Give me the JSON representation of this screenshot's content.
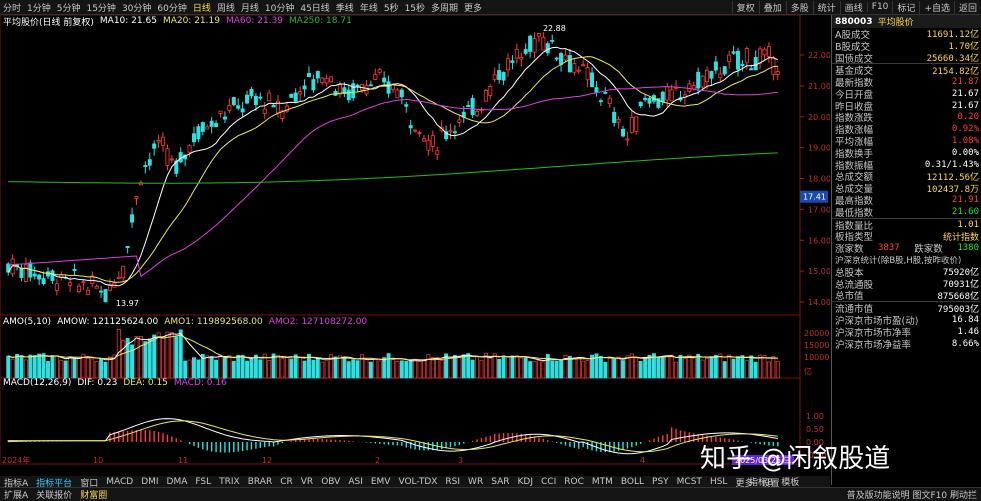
{
  "toolbar": {
    "periods": [
      "分时",
      "1分钟",
      "5分钟",
      "15分钟",
      "30分钟",
      "60分钟",
      "日线",
      "周线",
      "月线",
      "10分钟",
      "45日线",
      "季线",
      "年线",
      "5秒",
      "15秒",
      "多周期",
      "更多"
    ],
    "active_index": 6,
    "right_buttons": [
      "复权",
      "叠加",
      "多股",
      "统计",
      "画线",
      "F10",
      "标记",
      "+自选",
      "返回"
    ]
  },
  "main_title": {
    "name": "平均股价(日线 前复权)",
    "ma10": "MA10: 21.65",
    "ma20": "MA20: 21.19",
    "ma60": "MA60: 21.39",
    "ma250": "MA250: 18.71"
  },
  "amo_title": {
    "name": "AMO(5,10)",
    "amow": "AMOW: 121125624.00",
    "amo1": "AMO1: 119892568.00",
    "amo2": "AMO2: 127108272.00"
  },
  "macd_title": {
    "name": "MACD(12,26,9)",
    "dif": "DIF: 0.23",
    "dea": "DEA: 0.15",
    "macd": "MACD: 0.16"
  },
  "annotations": {
    "high": "22.88",
    "low": "13.97",
    "current": "17.41"
  },
  "price_axis": [
    "22.00",
    "21.00",
    "20.00",
    "19.00",
    "18.00",
    "17.00",
    "16.00",
    "15.00",
    "14.00"
  ],
  "amo_axis": [
    "20000",
    "15000",
    "10000",
    "亿"
  ],
  "macd_axis": [
    "1.00",
    "0.50",
    "0.00",
    "-0.50"
  ],
  "time_axis": [
    "2024年",
    "10",
    "11",
    "12",
    "2",
    "3",
    "4",
    "2025/03/25/三"
  ],
  "colors": {
    "up": "#ff3b3b",
    "down": "#30e0e0",
    "ma10": "#ffffff",
    "ma20": "#e8e860",
    "ma60": "#e040e0",
    "ma250": "#20c020"
  },
  "panel": {
    "code": "880003",
    "name": "平均股价",
    "rows": [
      {
        "label": "A股成交",
        "value": "11691.12亿",
        "color": "#ffd84d"
      },
      {
        "label": "B股成交",
        "value": "1.70亿",
        "color": "#ffd84d"
      },
      {
        "label": "国债成交",
        "value": "25660.34亿",
        "color": "#ffd84d"
      },
      {
        "label": "基金成交",
        "value": "2154.82亿",
        "color": "#ffd84d",
        "sep": true
      },
      {
        "label": "最新指数",
        "value": "21.87",
        "color": "#ff4040"
      },
      {
        "label": "今日开盘",
        "value": "21.67",
        "color": "#ffffff"
      },
      {
        "label": "昨日收盘",
        "value": "21.67",
        "color": "#ffffff"
      },
      {
        "label": "指数涨跌",
        "value": "0.20",
        "color": "#ff4040"
      },
      {
        "label": "指数涨幅",
        "value": "0.92%",
        "color": "#ff4040"
      },
      {
        "label": "平均涨幅",
        "value": "1.08%",
        "color": "#ff4040"
      },
      {
        "label": "指数换手",
        "value": "0.00%",
        "color": "#ffffff"
      },
      {
        "label": "指数振幅",
        "value": "0.31/1.43%",
        "color": "#ffffff"
      },
      {
        "label": "总成交额",
        "value": "12112.56亿",
        "color": "#ffd84d"
      },
      {
        "label": "总成交量",
        "value": "102437.8万",
        "color": "#ffd84d"
      },
      {
        "label": "最高指数",
        "value": "21.91",
        "color": "#ff4040"
      },
      {
        "label": "最低指数",
        "value": "21.60",
        "color": "#30e030"
      },
      {
        "label": "指数量比",
        "value": "1.01",
        "color": "#ffd84d",
        "sep": true
      },
      {
        "label": "板指类型",
        "value": "统计指数",
        "color": "#ffd84d"
      },
      {
        "label": "涨家数",
        "value": "3837",
        "value2": "跌家数",
        "value3": "1380",
        "color": "#ff4040",
        "special": true
      },
      {
        "label": "沪深京统计(除B股,H股,按昨收价)",
        "value": "",
        "color": "#ffffff",
        "wide": true
      },
      {
        "label": "总股本",
        "value": "75920亿",
        "color": "#ffffff"
      },
      {
        "label": "总流通股",
        "value": "70931亿",
        "color": "#ffffff"
      },
      {
        "label": "总市值",
        "value": "875668亿",
        "color": "#ffffff"
      },
      {
        "label": "流通市值",
        "value": "795003亿",
        "color": "#ffffff",
        "sep": true
      },
      {
        "label": "沪深京市场市盈(动)",
        "value": "16.84",
        "color": "#ffffff"
      },
      {
        "label": "沪深京市场市净率",
        "value": "1.46",
        "color": "#ffffff"
      },
      {
        "label": "沪深京市场净益率",
        "value": "8.66%",
        "color": "#ffffff"
      }
    ]
  },
  "indicator_tabs": [
    "指标A",
    "指标平台",
    "窗口",
    "MACD",
    "DMI",
    "DMA",
    "FSL",
    "TRIX",
    "BRAR",
    "CR",
    "VR",
    "OBV",
    "ASI",
    "EMV",
    "VOL-TDX",
    "RSI",
    "WR",
    "SAR",
    "KDJ",
    "CCI",
    "ROC",
    "MTM",
    "BOLL",
    "PSY",
    "MCST",
    "HSL",
    "更多",
    "设置"
  ],
  "indicator_tabs_active": 1,
  "tab_right": [
    "指标B",
    "模板"
  ],
  "bottom_tabs": [
    "扩展A",
    "关联报价",
    "财富圈"
  ],
  "bottom_right": "普及版功能说明  图文F10 刷动拦",
  "watermark": "知乎 @闲叙股道"
}
